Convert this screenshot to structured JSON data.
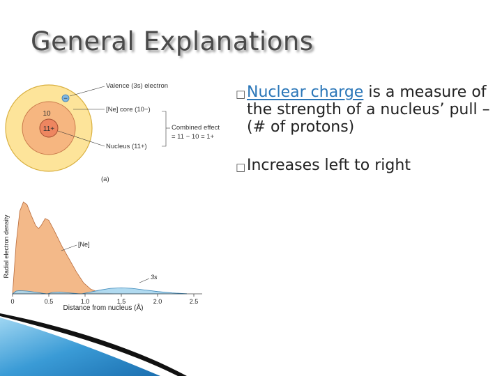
{
  "slide": {
    "title": "General Explanations",
    "bullets": [
      {
        "link_text": "Nuclear charge",
        "rest_text": " is a measure of the strength of a nucleus’ pull – (# of protons)"
      },
      {
        "text": "Increases left to right"
      }
    ]
  },
  "atom_figure": {
    "outer_value": "−",
    "core_value": "10",
    "nucleus_value": "11+",
    "labels": {
      "valence": "Valence (3s) electron",
      "core": "[Ne] core (10−)",
      "combined_line1": "Combined effect",
      "combined_line2": "= 11 − 10 = 1+",
      "nucleus": "Nucleus (11+)"
    },
    "panel_letter": "(a)",
    "colors": {
      "outer_ring": "#fde49a",
      "core_ring": "#f6b680",
      "nucleus": "#ee8660"
    }
  },
  "chart_data": {
    "type": "area",
    "title": "",
    "xlabel": "Distance from nucleus (Å)",
    "ylabel": "Radial electron density",
    "xlim": [
      0,
      2.5
    ],
    "x_ticks": [
      "0",
      "0.5",
      "1.0",
      "1.5",
      "2.0",
      "2.5"
    ],
    "x_tick_values": [
      0,
      0.5,
      1.0,
      1.5,
      2.0,
      2.5
    ],
    "grid": false,
    "series": [
      {
        "name": "[Ne]",
        "color": "#f2b583",
        "points": [
          [
            0,
            0
          ],
          [
            0.05,
            0.55
          ],
          [
            0.1,
            0.9
          ],
          [
            0.15,
            1.0
          ],
          [
            0.2,
            0.97
          ],
          [
            0.26,
            0.85
          ],
          [
            0.32,
            0.74
          ],
          [
            0.36,
            0.71
          ],
          [
            0.4,
            0.75
          ],
          [
            0.45,
            0.82
          ],
          [
            0.5,
            0.8
          ],
          [
            0.58,
            0.68
          ],
          [
            0.68,
            0.52
          ],
          [
            0.78,
            0.38
          ],
          [
            0.88,
            0.24
          ],
          [
            0.98,
            0.12
          ],
          [
            1.08,
            0.05
          ],
          [
            1.2,
            0.015
          ],
          [
            1.4,
            0.0
          ]
        ]
      },
      {
        "name": "3s",
        "color": "#a7d6ee",
        "points": [
          [
            0,
            0
          ],
          [
            0.05,
            0.03
          ],
          [
            0.1,
            0.035
          ],
          [
            0.2,
            0.03
          ],
          [
            0.3,
            0.02
          ],
          [
            0.42,
            0.005
          ],
          [
            0.48,
            0.0
          ],
          [
            0.55,
            0.015
          ],
          [
            0.65,
            0.02
          ],
          [
            0.75,
            0.012
          ],
          [
            0.9,
            0.002
          ],
          [
            0.95,
            0.0
          ],
          [
            1.05,
            0.015
          ],
          [
            1.2,
            0.04
          ],
          [
            1.35,
            0.06
          ],
          [
            1.5,
            0.065
          ],
          [
            1.65,
            0.06
          ],
          [
            1.8,
            0.045
          ],
          [
            2.0,
            0.025
          ],
          [
            2.2,
            0.01
          ],
          [
            2.4,
            0.002
          ]
        ]
      }
    ]
  }
}
